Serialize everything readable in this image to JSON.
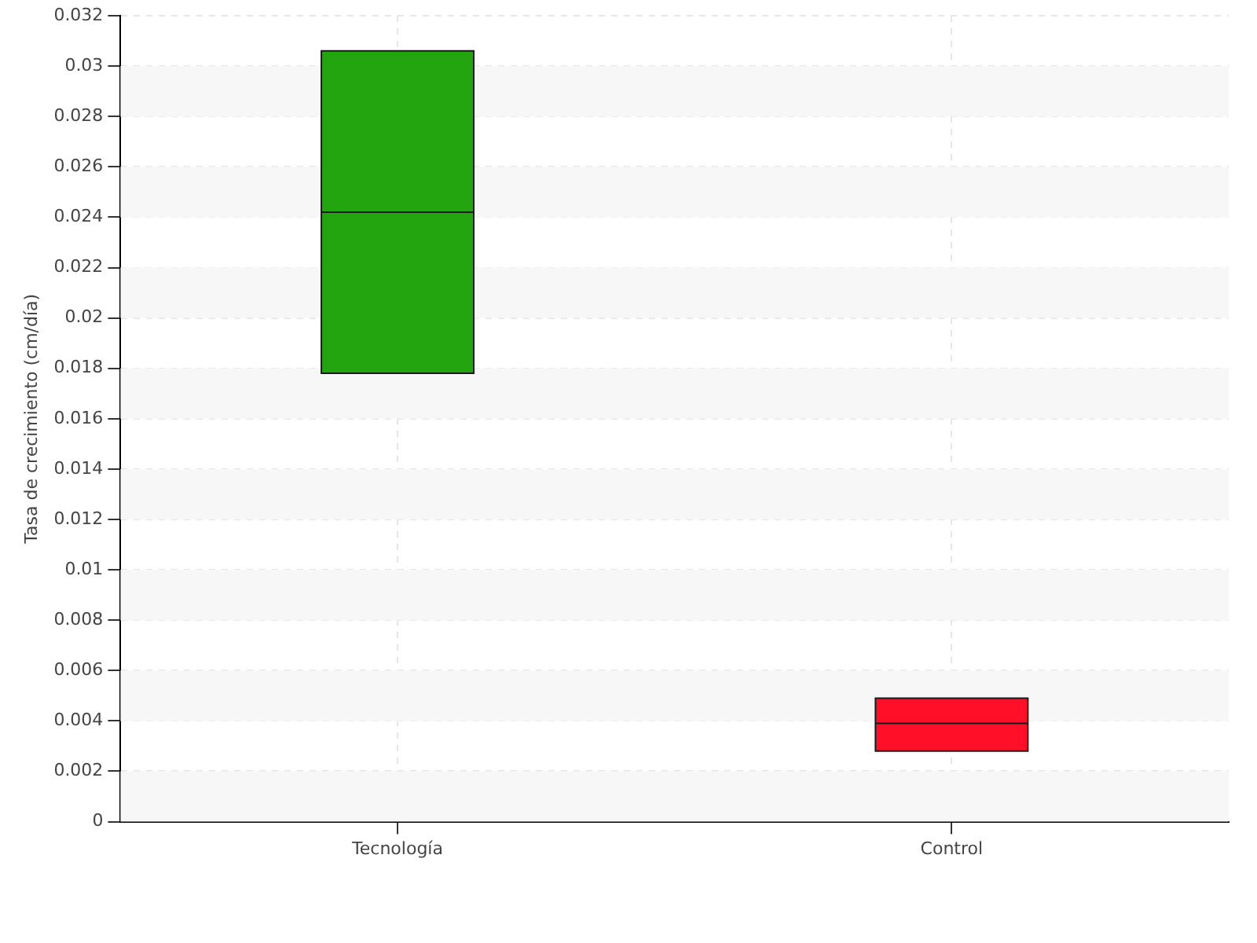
{
  "chart_data": {
    "type": "box",
    "ylabel": "Tasa de crecimiento (cm/día)",
    "categories": [
      "Tecnología",
      "Control"
    ],
    "boxes": [
      {
        "low": 0.0178,
        "q1": 0.0178,
        "median": 0.0242,
        "q3": 0.0306,
        "high": 0.0306
      },
      {
        "low": 0.0028,
        "q1": 0.0028,
        "median": 0.0039,
        "q3": 0.0049,
        "high": 0.0049
      }
    ],
    "colors": [
      "#22a50f",
      "#ff1028"
    ],
    "ylim": [
      0,
      0.032
    ],
    "yticks": [
      0,
      0.002,
      0.004,
      0.006,
      0.008,
      0.01,
      0.012,
      0.014,
      0.016,
      0.018,
      0.02,
      0.022,
      0.024,
      0.026,
      0.028,
      0.03,
      0.032
    ],
    "grid": true,
    "legend": false
  }
}
